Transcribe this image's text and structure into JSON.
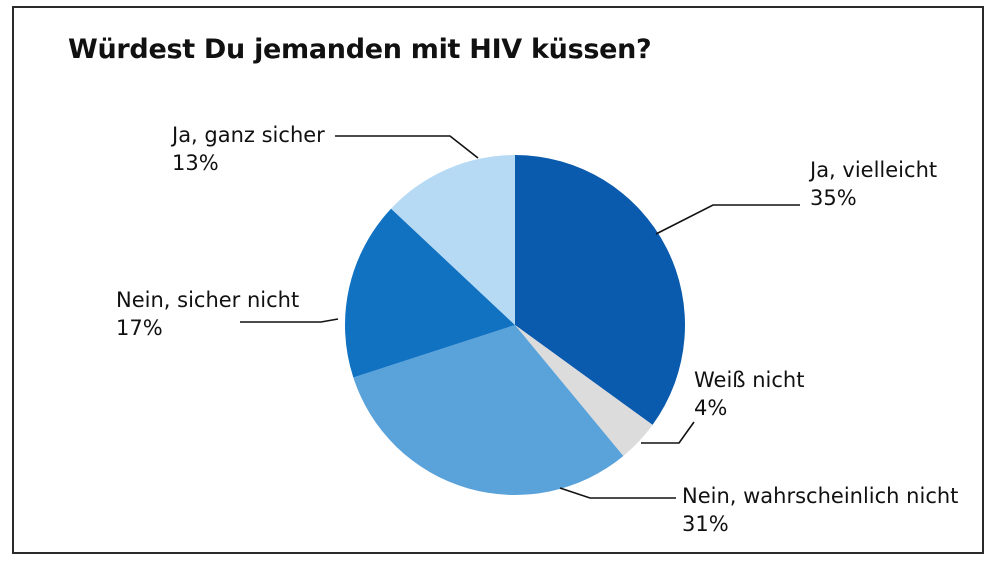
{
  "chart_data": {
    "type": "pie",
    "title": "Würdest Du jemanden mit HIV küssen?",
    "slices": [
      {
        "label": "Ja, vielleicht",
        "value_label": "35%",
        "value": 35,
        "color": "#0a5aad"
      },
      {
        "label": "Weiß nicht",
        "value_label": "4%",
        "value": 4,
        "color": "#dcdcdc"
      },
      {
        "label": "Nein, wahrscheinlich nicht",
        "value_label": "31%",
        "value": 31,
        "color": "#5aa2da"
      },
      {
        "label": "Nein, sicher nicht",
        "value_label": "17%",
        "value": 17,
        "color": "#1172c2"
      },
      {
        "label": "Ja, ganz sicher",
        "value_label": "13%",
        "value": 13,
        "color": "#b7daf4"
      }
    ]
  }
}
